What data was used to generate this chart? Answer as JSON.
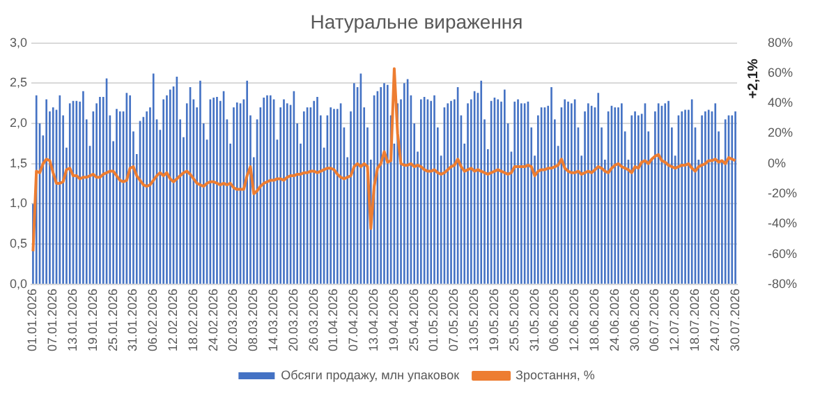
{
  "chart_data": {
    "type": "bar",
    "title": "Натуральне вираження",
    "categories": [
      "01.01.2026",
      null,
      null,
      null,
      null,
      null,
      "07.01.2026",
      null,
      null,
      null,
      null,
      null,
      "13.01.2026",
      null,
      null,
      null,
      null,
      null,
      "19.01.2026",
      null,
      null,
      null,
      null,
      null,
      "25.01.2026",
      null,
      null,
      null,
      null,
      null,
      "31.01.2026",
      null,
      null,
      null,
      null,
      null,
      "06.02.2026",
      null,
      null,
      null,
      null,
      null,
      "12.02.2026",
      null,
      null,
      null,
      null,
      null,
      "18.02.2026",
      null,
      null,
      null,
      null,
      null,
      "24.02.2026",
      null,
      null,
      null,
      null,
      null,
      "02.03.2026",
      null,
      null,
      null,
      null,
      null,
      "08.03.2026",
      null,
      null,
      null,
      null,
      null,
      "14.03.2026",
      null,
      null,
      null,
      null,
      null,
      "20.03.2026",
      null,
      null,
      null,
      null,
      null,
      "26.03.2026",
      null,
      null,
      null,
      null,
      null,
      "01.04.2026",
      null,
      null,
      null,
      null,
      null,
      "07.04.2026",
      null,
      null,
      null,
      null,
      null,
      "13.04.2026",
      null,
      null,
      null,
      null,
      null,
      "19.04.2026",
      null,
      null,
      null,
      null,
      null,
      "25.04.2026",
      null,
      null,
      null,
      null,
      null,
      "01.05.2026",
      null,
      null,
      null,
      null,
      null,
      "07.05.2026",
      null,
      null,
      null,
      null,
      null,
      "13.05.2026",
      null,
      null,
      null,
      null,
      null,
      "19.05.2026",
      null,
      null,
      null,
      null,
      null,
      "25.05.2026",
      null,
      null,
      null,
      null,
      null,
      "31.05.2026",
      null,
      null,
      null,
      null,
      null,
      "06.06.2026",
      null,
      null,
      null,
      null,
      null,
      "12.06.2026",
      null,
      null,
      null,
      null,
      null,
      "18.06.2026",
      null,
      null,
      null,
      null,
      null,
      "24.06.2026",
      null,
      null,
      null,
      null,
      null,
      "30.06.2026",
      null,
      null,
      null,
      null,
      null,
      "06.07.2026",
      null,
      null,
      null,
      null,
      null,
      "12.07.2026",
      null,
      null,
      null,
      null,
      null,
      "18.07.2026",
      null,
      null,
      null,
      null,
      null,
      "24.07.2026",
      null,
      null,
      null,
      null,
      null,
      "30.07.2026"
    ],
    "series": [
      {
        "name": "Обсяги продажу, млн упаковок",
        "color": "#4472c4",
        "values": [
          1.0,
          2.35,
          2.0,
          1.85,
          2.3,
          2.15,
          2.2,
          2.17,
          2.35,
          2.1,
          1.7,
          2.25,
          2.28,
          2.28,
          2.27,
          2.4,
          2.05,
          1.72,
          2.15,
          2.25,
          2.33,
          2.33,
          2.56,
          2.1,
          1.78,
          2.18,
          2.15,
          2.15,
          2.38,
          2.35,
          1.9,
          1.62,
          2.03,
          2.08,
          2.15,
          2.2,
          2.62,
          2.05,
          1.92,
          2.3,
          2.35,
          2.42,
          2.46,
          2.58,
          2.05,
          1.83,
          2.25,
          2.45,
          2.3,
          2.2,
          2.53,
          2.0,
          1.8,
          2.3,
          2.32,
          2.33,
          2.28,
          2.4,
          2.05,
          1.75,
          2.2,
          2.26,
          2.25,
          2.3,
          2.53,
          2.1,
          1.58,
          2.05,
          2.2,
          2.32,
          2.35,
          2.35,
          2.3,
          1.8,
          2.2,
          2.3,
          2.25,
          2.23,
          2.4,
          2.0,
          1.75,
          2.15,
          2.2,
          2.2,
          2.28,
          2.33,
          2.1,
          1.7,
          2.1,
          2.2,
          2.18,
          2.18,
          2.25,
          1.95,
          1.58,
          2.15,
          2.5,
          2.45,
          2.62,
          2.2,
          1.95,
          1.55,
          2.35,
          2.4,
          2.45,
          2.5,
          2.48,
          2.1,
          1.75,
          2.25,
          2.3,
          2.5,
          2.55,
          2.35,
          2.0,
          1.65,
          2.3,
          2.33,
          2.3,
          2.28,
          2.35,
          1.95,
          1.6,
          2.2,
          2.25,
          2.28,
          2.3,
          2.45,
          2.1,
          1.75,
          2.25,
          2.3,
          2.4,
          2.38,
          2.53,
          2.05,
          1.68,
          2.28,
          2.32,
          2.3,
          2.27,
          2.42,
          2.0,
          1.65,
          2.27,
          2.3,
          2.25,
          2.25,
          2.27,
          1.95,
          1.6,
          2.1,
          2.2,
          2.2,
          2.22,
          2.45,
          2.05,
          1.72,
          2.2,
          2.3,
          2.27,
          2.25,
          2.3,
          1.95,
          1.6,
          2.15,
          2.25,
          2.22,
          2.2,
          2.38,
          1.95,
          1.55,
          2.15,
          2.22,
          2.2,
          2.2,
          2.25,
          1.9,
          1.55,
          2.1,
          2.15,
          2.1,
          2.12,
          2.25,
          1.9,
          1.55,
          2.15,
          2.25,
          2.22,
          2.25,
          2.28,
          1.95,
          1.6,
          2.1,
          2.15,
          2.17,
          2.17,
          2.3,
          1.95,
          1.55,
          2.1,
          2.15,
          2.17,
          2.15,
          2.25,
          1.9,
          1.55,
          2.05,
          2.1,
          2.1,
          2.15
        ]
      },
      {
        "name": "Зростання, %",
        "type": "line",
        "axis": "y2",
        "color": "#ed7d31",
        "values": [
          -58,
          -5,
          -6,
          0,
          3,
          2,
          -6,
          -13,
          -13,
          -12,
          -4,
          -3,
          -8,
          -8,
          -10,
          -9,
          -9,
          -8,
          -7,
          -9,
          -9,
          -7,
          -6,
          -5,
          -5,
          -8,
          -11,
          -12,
          -11,
          -3,
          -2,
          -8,
          -11,
          -14,
          -15,
          -14,
          -11,
          -8,
          -6,
          -8,
          -6,
          -10,
          -12,
          -10,
          -8,
          -6,
          -5,
          -7,
          -10,
          -13,
          -14,
          -15,
          -13,
          -12,
          -12,
          -13,
          -14,
          -13,
          -14,
          -13,
          -16,
          -17,
          -17,
          -17,
          -8,
          -2,
          -20,
          -18,
          -15,
          -13,
          -12,
          -11,
          -11,
          -10,
          -10,
          -11,
          -9,
          -8,
          -8,
          -7,
          -7,
          -6,
          -6,
          -5,
          -5,
          -6,
          -5,
          -4,
          -3,
          -3,
          -4,
          -7,
          -9,
          -10,
          -9,
          -8,
          -2,
          0,
          -2,
          0,
          -2,
          -43,
          -15,
          -3,
          0,
          8,
          1,
          2,
          63,
          20,
          0,
          -1,
          -1,
          0,
          -2,
          -1,
          -2,
          -4,
          -5,
          -5,
          -4,
          -6,
          -7,
          -6,
          -4,
          -2,
          -1,
          3,
          -2,
          -5,
          -4,
          -3,
          -5,
          -4,
          -5,
          -6,
          -7,
          -6,
          -5,
          -4,
          -5,
          -6,
          -7,
          -6,
          -2,
          -2,
          -2,
          -2,
          -1,
          -2,
          -8,
          -5,
          -4,
          -4,
          -3,
          -3,
          -2,
          -1,
          3,
          -3,
          -5,
          -6,
          -6,
          -5,
          -7,
          -6,
          -5,
          -6,
          -4,
          -2,
          -3,
          -5,
          -6,
          -3,
          -1,
          0,
          -2,
          -3,
          -4,
          -6,
          -2,
          -3,
          1,
          2,
          0,
          3,
          5,
          6,
          2,
          1,
          -1,
          -2,
          -3,
          -2,
          -1,
          -1,
          0,
          -3,
          -5,
          -2,
          -1,
          0,
          2,
          2,
          3,
          1,
          2,
          0,
          4,
          3,
          2
        ]
      }
    ],
    "ylim": [
      0,
      3
    ],
    "yticks": [
      {
        "value": 0,
        "label": "0,0"
      },
      {
        "value": 0.5,
        "label": "0,5"
      },
      {
        "value": 1,
        "label": "1,0"
      },
      {
        "value": 1.5,
        "label": "1,5"
      },
      {
        "value": 2,
        "label": "2,0"
      },
      {
        "value": 2.5,
        "label": "2,5"
      },
      {
        "value": 3,
        "label": "3,0"
      }
    ],
    "y2lim": [
      -80,
      80
    ],
    "y2ticks": [
      {
        "value": -80,
        "label": "-80%"
      },
      {
        "value": -60,
        "label": "-60%"
      },
      {
        "value": -40,
        "label": "-40%"
      },
      {
        "value": -20,
        "label": "-20%"
      },
      {
        "value": 0,
        "label": "0%"
      },
      {
        "value": 20,
        "label": "20%"
      },
      {
        "value": 40,
        "label": "40%"
      },
      {
        "value": 60,
        "label": "60%"
      },
      {
        "value": 80,
        "label": "80%"
      }
    ],
    "annotations": [
      "+2,1%"
    ],
    "grid": "y",
    "legend": "bottom",
    "marker": "none"
  }
}
